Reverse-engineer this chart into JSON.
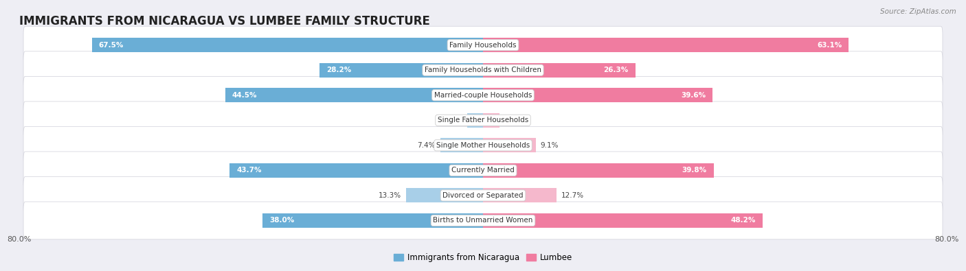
{
  "title": "IMMIGRANTS FROM NICARAGUA VS LUMBEE FAMILY STRUCTURE",
  "source": "Source: ZipAtlas.com",
  "categories": [
    "Family Households",
    "Family Households with Children",
    "Married-couple Households",
    "Single Father Households",
    "Single Mother Households",
    "Currently Married",
    "Divorced or Separated",
    "Births to Unmarried Women"
  ],
  "nicaragua_values": [
    67.5,
    28.2,
    44.5,
    2.7,
    7.4,
    43.7,
    13.3,
    38.0
  ],
  "lumbee_values": [
    63.1,
    26.3,
    39.6,
    2.8,
    9.1,
    39.8,
    12.7,
    48.2
  ],
  "nicaragua_color": "#6aaed6",
  "nicaragua_color_light": "#a8cfe8",
  "lumbee_color": "#f07ca0",
  "lumbee_color_light": "#f5b8cc",
  "nicaragua_label": "Immigrants from Nicaragua",
  "lumbee_label": "Lumbee",
  "axis_max": 80.0,
  "background_color": "#eeeef4",
  "row_bg_color": "#ffffff",
  "title_fontsize": 12,
  "label_fontsize": 7.5,
  "value_fontsize": 7.5,
  "legend_fontsize": 8.5,
  "source_fontsize": 7.5,
  "small_threshold": 15
}
